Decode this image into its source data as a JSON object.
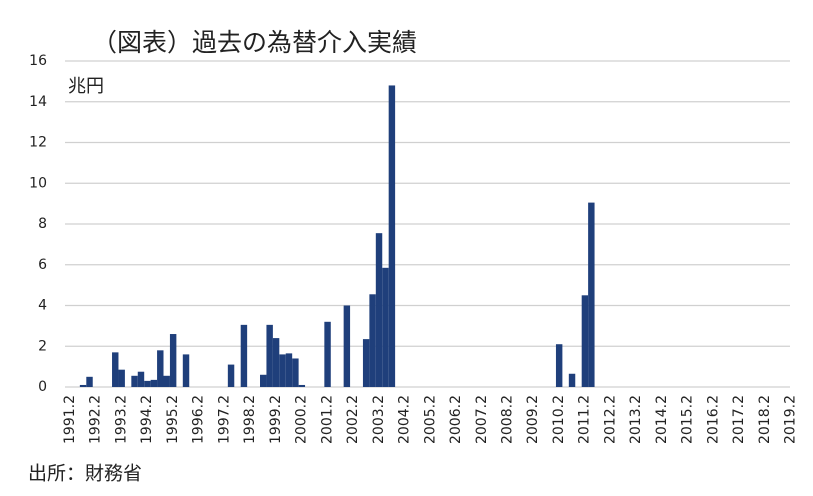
{
  "chart_data": {
    "type": "bar",
    "title": "（図表）過去の為替介入実績",
    "y_unit": "兆円",
    "source": "出所：財務省",
    "categories": [
      "1991.2",
      null,
      null,
      null,
      "1992.2",
      null,
      null,
      null,
      "1993.2",
      null,
      null,
      null,
      "1994.2",
      null,
      null,
      null,
      "1995.2",
      null,
      null,
      null,
      "1996.2",
      null,
      null,
      null,
      "1997.2",
      null,
      null,
      null,
      "1998.2",
      null,
      null,
      null,
      "1999.2",
      null,
      null,
      null,
      "2000.2",
      null,
      null,
      null,
      "2001.2",
      null,
      null,
      null,
      "2002.2",
      null,
      null,
      null,
      "2003.2",
      null,
      null,
      null,
      "2004.2",
      null,
      null,
      null,
      "2005.2",
      null,
      null,
      null,
      "2006.2",
      null,
      null,
      null,
      "2007.2",
      null,
      null,
      null,
      "2008.2",
      null,
      null,
      null,
      "2009.2",
      null,
      null,
      null,
      "2010.2",
      null,
      null,
      null,
      "2011.2",
      null,
      null,
      null,
      "2012.2",
      null,
      null,
      null,
      "2013.2",
      null,
      null,
      null,
      "2014.2",
      null,
      null,
      null,
      "2015.2",
      null,
      null,
      null,
      "2016.2",
      null,
      null,
      null,
      "2017.2",
      null,
      null,
      null,
      "2018.2",
      null,
      null,
      null,
      "2019.2"
    ],
    "values": [
      0,
      0,
      0.1,
      0.5,
      0,
      0,
      0,
      1.7,
      0.85,
      0,
      0.55,
      0.75,
      0.3,
      0.35,
      1.8,
      0.55,
      2.6,
      0,
      1.6,
      0,
      0,
      0,
      0,
      0,
      0,
      1.1,
      0,
      3.05,
      0,
      0,
      0.6,
      3.05,
      2.4,
      1.6,
      1.65,
      1.4,
      0.1,
      0,
      0,
      0,
      3.2,
      0,
      0,
      4.0,
      0,
      0,
      2.35,
      4.55,
      7.55,
      5.85,
      14.8,
      0,
      0,
      0,
      0,
      0,
      0,
      0,
      0,
      0,
      0,
      0,
      0,
      0,
      0,
      0,
      0,
      0,
      0,
      0,
      0,
      0,
      0,
      0,
      0,
      0,
      2.1,
      0,
      0.65,
      0,
      4.5,
      9.05,
      0,
      0,
      0,
      0,
      0,
      0,
      0,
      0,
      0,
      0,
      0,
      0,
      0,
      0,
      0,
      0,
      0,
      0,
      0,
      0,
      0,
      0,
      0,
      0,
      0,
      0,
      0,
      0,
      0,
      0,
      0
    ],
    "color": "#1f3f7b",
    "ylim": [
      0,
      16
    ],
    "yticks": [
      0,
      2,
      4,
      6,
      8,
      10,
      12,
      14,
      16
    ],
    "grid": true
  }
}
